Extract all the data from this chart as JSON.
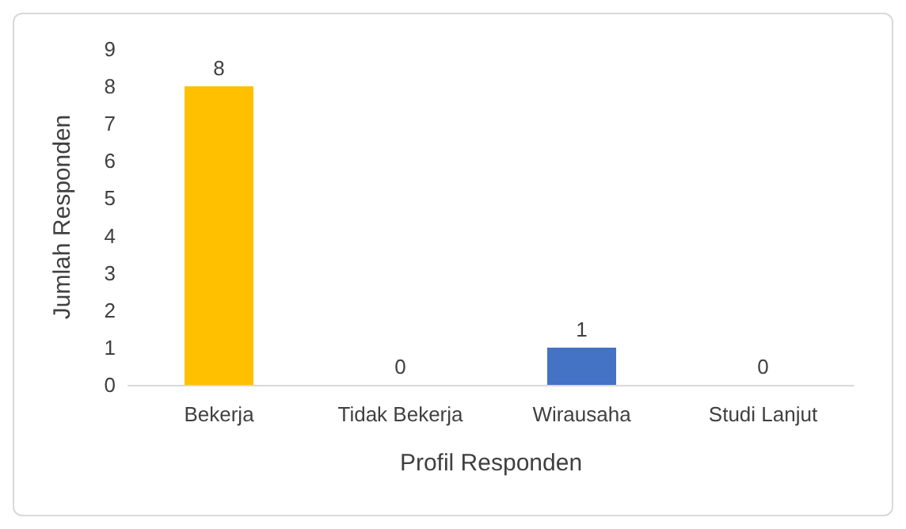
{
  "chart_data": {
    "type": "bar",
    "xlabel": "Profil Responden",
    "ylabel": "Jumlah Responden",
    "categories": [
      "Bekerja",
      "Tidak Bekerja",
      "Wirausaha",
      "Studi Lanjut"
    ],
    "values": [
      8,
      0,
      1,
      0
    ],
    "colors": [
      "#ffc000",
      "#ed7d31",
      "#4472c4",
      "#a5a5a5"
    ],
    "ylim": [
      0,
      9
    ],
    "yticks": [
      0,
      1,
      2,
      3,
      4,
      5,
      6,
      7,
      8,
      9
    ],
    "grid": false,
    "data_labels": true
  }
}
